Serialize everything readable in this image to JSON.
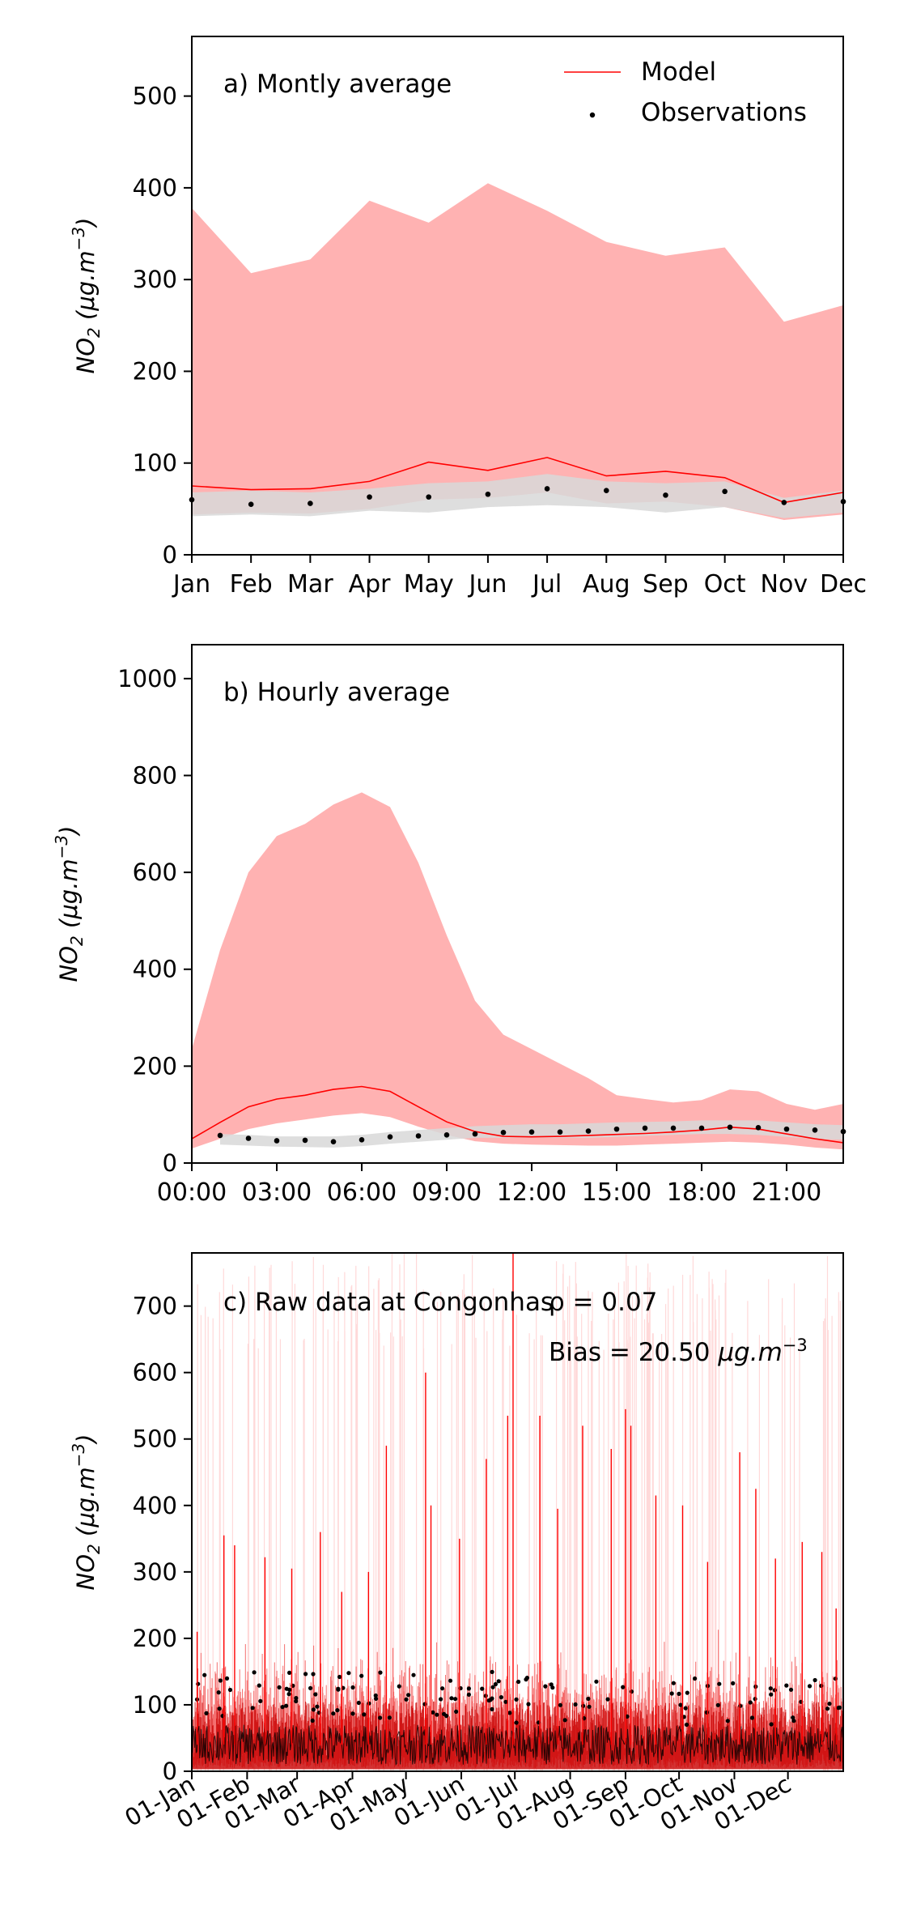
{
  "chart_data": [
    {
      "type": "area",
      "annotation": "a) Montly average",
      "ylabel_main": "NO",
      "ylabel_sub": "2",
      "ylabel_unit": " (μg.m",
      "ylabel_sup": "−3",
      "ylabel_close": ")",
      "ylim": [
        0,
        565
      ],
      "yticks": [
        0,
        100,
        200,
        300,
        400,
        500
      ],
      "categories": [
        "Jan",
        "Feb",
        "Mar",
        "Apr",
        "May",
        "Jun",
        "Jul",
        "Aug",
        "Sep",
        "Oct",
        "Nov",
        "Dec"
      ],
      "legend": {
        "position": "top-right",
        "model_label": "Model",
        "obs_label": "Observations"
      },
      "model_band_upper": [
        378,
        307,
        322,
        386,
        362,
        405,
        375,
        341,
        326,
        335,
        254,
        272
      ],
      "model_band_lower": [
        44,
        46,
        45,
        50,
        60,
        62,
        68,
        56,
        58,
        52,
        38,
        44
      ],
      "model_mean": [
        75,
        71,
        72,
        80,
        101,
        92,
        106,
        86,
        91,
        84,
        57,
        68
      ],
      "obs_band_upper": [
        68,
        70,
        68,
        72,
        78,
        80,
        88,
        80,
        78,
        80,
        62,
        70
      ],
      "obs_band_lower": [
        42,
        44,
        42,
        48,
        46,
        52,
        54,
        52,
        46,
        52,
        40,
        46
      ],
      "observations": [
        60,
        55,
        56,
        63,
        63,
        66,
        72,
        70,
        65,
        69,
        57,
        58
      ],
      "colors": {
        "band": "#ffb2b2",
        "model": "#ff0000",
        "obs_band": "#d8d8d8",
        "obs": "#000000"
      }
    },
    {
      "type": "area",
      "annotation": "b) Hourly average",
      "ylabel_main": "NO",
      "ylabel_sub": "2",
      "ylabel_unit": " (μg.m",
      "ylabel_sup": "−3",
      "ylabel_close": ")",
      "ylim": [
        0,
        1070
      ],
      "xlim": [
        0,
        23
      ],
      "yticks": [
        0,
        200,
        400,
        600,
        800,
        1000
      ],
      "xticks": [
        0,
        3,
        6,
        9,
        12,
        15,
        18,
        21
      ],
      "xtick_labels": [
        "00:00",
        "03:00",
        "06:00",
        "09:00",
        "12:00",
        "15:00",
        "18:00",
        "21:00"
      ],
      "hours": [
        0,
        1,
        2,
        3,
        4,
        5,
        6,
        7,
        8,
        9,
        10,
        11,
        12,
        13,
        14,
        15,
        16,
        17,
        18,
        19,
        20,
        21,
        22,
        23
      ],
      "model_band_upper": [
        235,
        440,
        600,
        675,
        700,
        740,
        765,
        735,
        620,
        470,
        335,
        265,
        235,
        205,
        175,
        140,
        132,
        125,
        130,
        152,
        148,
        122,
        110,
        122
      ],
      "model_band_lower": [
        30,
        50,
        70,
        82,
        90,
        98,
        103,
        95,
        75,
        58,
        45,
        40,
        38,
        37,
        36,
        36,
        38,
        40,
        42,
        44,
        42,
        38,
        32,
        28
      ],
      "model_mean": [
        50,
        84,
        116,
        132,
        140,
        152,
        158,
        148,
        116,
        85,
        65,
        55,
        54,
        55,
        57,
        59,
        61,
        64,
        68,
        74,
        70,
        60,
        50,
        42
      ],
      "obs_band_upper": [
        null,
        60,
        58,
        55,
        55,
        55,
        58,
        64,
        68,
        72,
        76,
        78,
        80,
        80,
        82,
        84,
        85,
        86,
        88,
        88,
        88,
        84,
        80,
        78
      ],
      "obs_band_lower": [
        null,
        38,
        36,
        34,
        33,
        32,
        35,
        40,
        44,
        48,
        52,
        52,
        52,
        52,
        52,
        54,
        56,
        58,
        60,
        60,
        58,
        54,
        50,
        48
      ],
      "observations": [
        null,
        57,
        51,
        46,
        47,
        44,
        48,
        54,
        56,
        58,
        60,
        63,
        64,
        64,
        66,
        70,
        72,
        72,
        72,
        74,
        73,
        70,
        68,
        65
      ],
      "colors": {
        "band": "#ffb2b2",
        "model": "#ff0000",
        "obs_band": "#d8d8d8",
        "obs": "#000000"
      }
    },
    {
      "type": "line",
      "annotation": "c) Raw data at Congonhas",
      "stat_rho": "ρ = 0.07",
      "stat_bias_text": "Bias = 20.50 ",
      "stat_bias_unit": "μg.m",
      "stat_bias_sup": "−3",
      "ylabel_main": "NO",
      "ylabel_sub": "2",
      "ylabel_unit": " (μg.m",
      "ylabel_sup": "−3",
      "ylabel_close": ")",
      "ylim": [
        0,
        780
      ],
      "yticks": [
        0,
        100,
        200,
        300,
        400,
        500,
        600,
        700
      ],
      "xlim_days": [
        0,
        365
      ],
      "xtick_days": [
        0,
        31,
        59,
        90,
        120,
        151,
        181,
        212,
        243,
        273,
        304,
        334
      ],
      "xtick_labels": [
        "01-Jan",
        "01-Feb",
        "01-Mar",
        "01-Apr",
        "01-May",
        "01-Jun",
        "01-Jul",
        "01-Aug",
        "01-Sep",
        "01-Oct",
        "01-Nov",
        "01-Dec"
      ],
      "model_typical_range": [
        20,
        150
      ],
      "obs_typical_range": [
        10,
        110
      ],
      "model_spikes": [
        {
          "day": 3,
          "value": 210
        },
        {
          "day": 18,
          "value": 355
        },
        {
          "day": 24,
          "value": 340
        },
        {
          "day": 41,
          "value": 322
        },
        {
          "day": 56,
          "value": 305
        },
        {
          "day": 72,
          "value": 360
        },
        {
          "day": 84,
          "value": 270
        },
        {
          "day": 99,
          "value": 300
        },
        {
          "day": 109,
          "value": 490
        },
        {
          "day": 131,
          "value": 600
        },
        {
          "day": 134,
          "value": 400
        },
        {
          "day": 150,
          "value": 350
        },
        {
          "day": 165,
          "value": 470
        },
        {
          "day": 177,
          "value": 535
        },
        {
          "day": 180,
          "value": 780
        },
        {
          "day": 195,
          "value": 535
        },
        {
          "day": 205,
          "value": 395
        },
        {
          "day": 219,
          "value": 520
        },
        {
          "day": 235,
          "value": 485
        },
        {
          "day": 243,
          "value": 545
        },
        {
          "day": 246,
          "value": 520
        },
        {
          "day": 260,
          "value": 415
        },
        {
          "day": 275,
          "value": 400
        },
        {
          "day": 289,
          "value": 315
        },
        {
          "day": 307,
          "value": 480
        },
        {
          "day": 316,
          "value": 425
        },
        {
          "day": 327,
          "value": 320
        },
        {
          "day": 342,
          "value": 345
        },
        {
          "day": 353,
          "value": 330
        },
        {
          "day": 361,
          "value": 245
        }
      ],
      "colors": {
        "model": "#ff0000",
        "model_faint": "#ffd9d9",
        "obs": "#000000"
      }
    }
  ]
}
